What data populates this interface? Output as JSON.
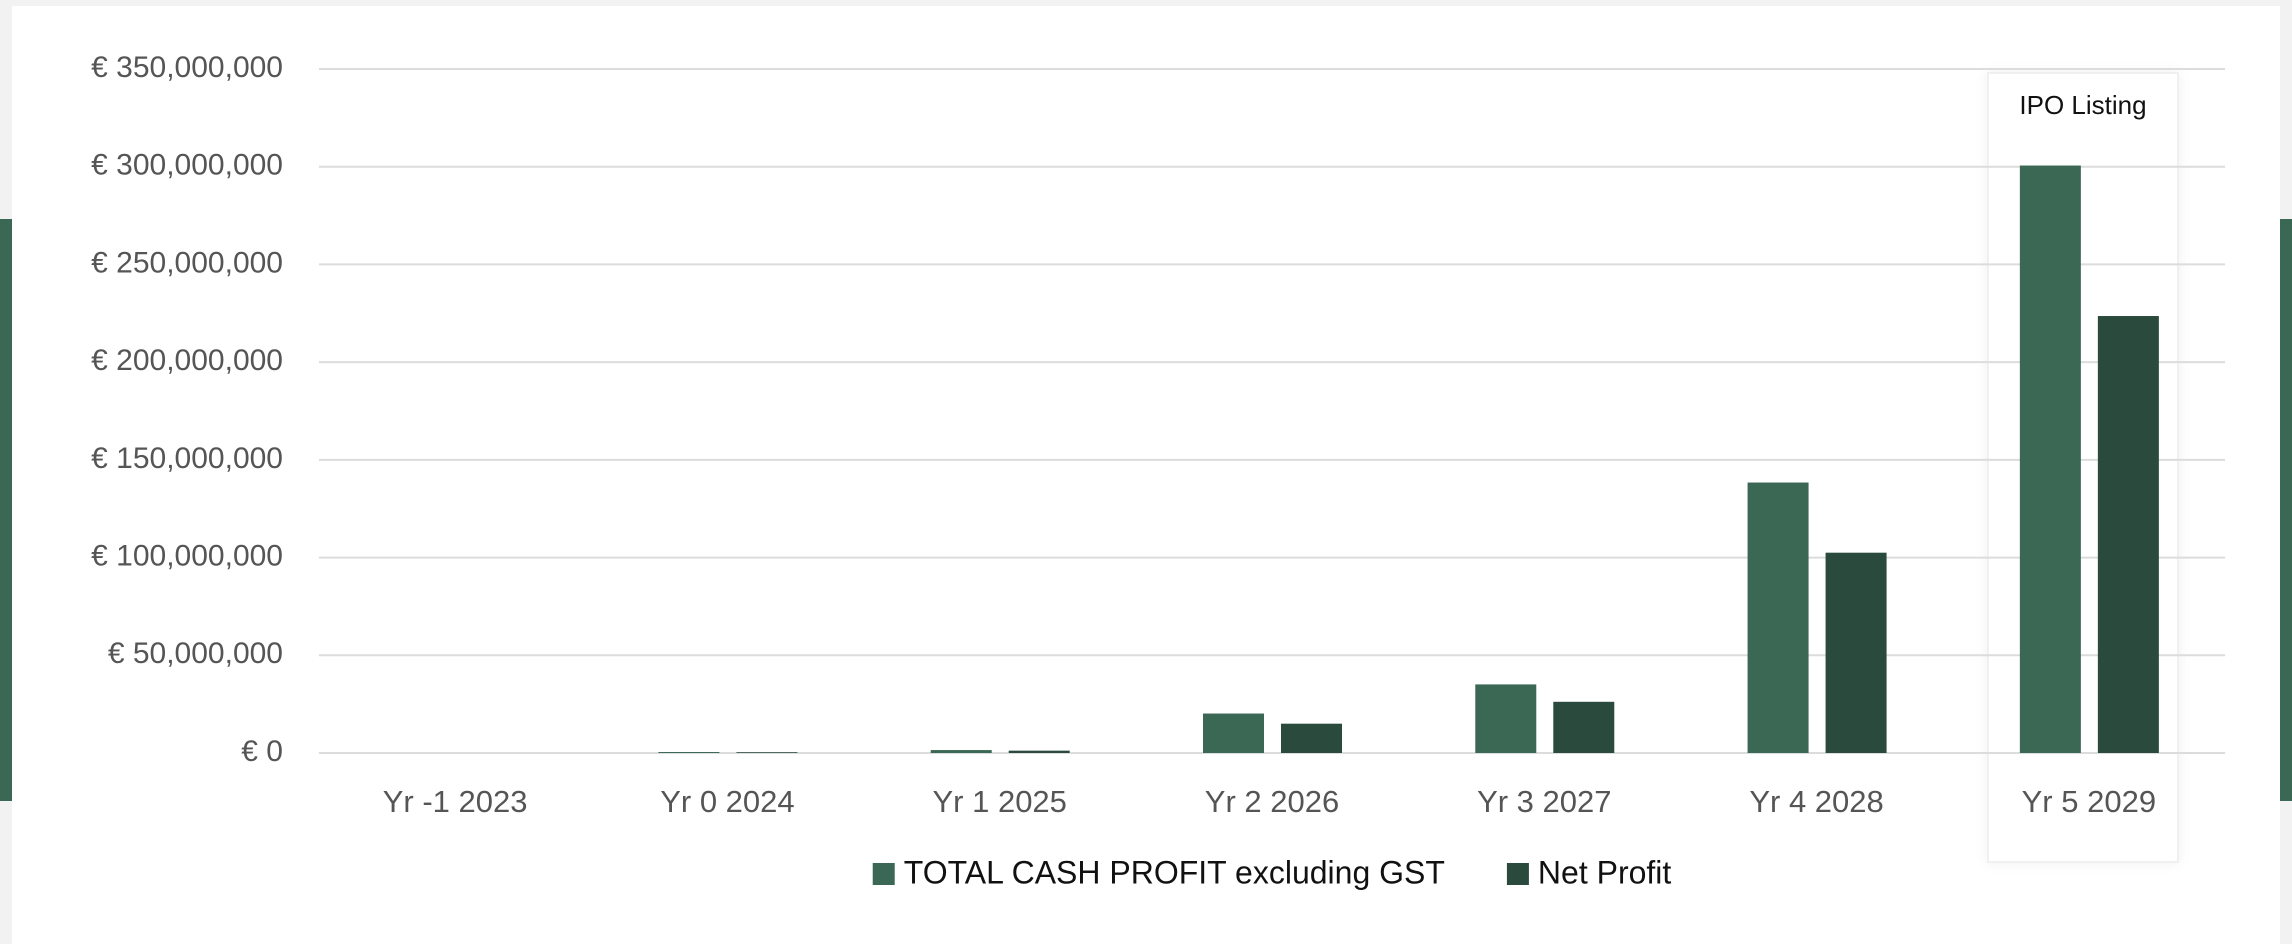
{
  "chart_data": {
    "type": "bar",
    "categories": [
      "Yr -1 2023",
      "Yr 0 2024",
      "Yr 1 2025",
      "Yr 2 2026",
      "Yr 3 2027",
      "Yr 4 2028",
      "Yr 5 2029"
    ],
    "series": [
      {
        "name": "TOTAL CASH PROFIT excluding GST",
        "color": "#3a6855",
        "values": [
          0,
          500000,
          1500000,
          20200000,
          35100000,
          138400000,
          300600000
        ]
      },
      {
        "name": "Net Profit",
        "color": "#2b4a3e",
        "values": [
          0,
          400000,
          1200000,
          15000000,
          26200000,
          102500000,
          223600000
        ]
      }
    ],
    "ylim": [
      0,
      350000000
    ],
    "yticks": [
      {
        "value": 0,
        "label": "€ 0"
      },
      {
        "value": 50000000,
        "label": "€ 50,000,000"
      },
      {
        "value": 100000000,
        "label": "€ 100,000,000"
      },
      {
        "value": 150000000,
        "label": "€ 150,000,000"
      },
      {
        "value": 200000000,
        "label": "€ 200,000,000"
      },
      {
        "value": 250000000,
        "label": "€ 250,000,000"
      },
      {
        "value": 300000000,
        "label": "€ 300,000,000"
      },
      {
        "value": 350000000,
        "label": "€ 350,000,000"
      }
    ],
    "grid": true,
    "annotation": "IPO Listing",
    "legend": "bottom"
  }
}
